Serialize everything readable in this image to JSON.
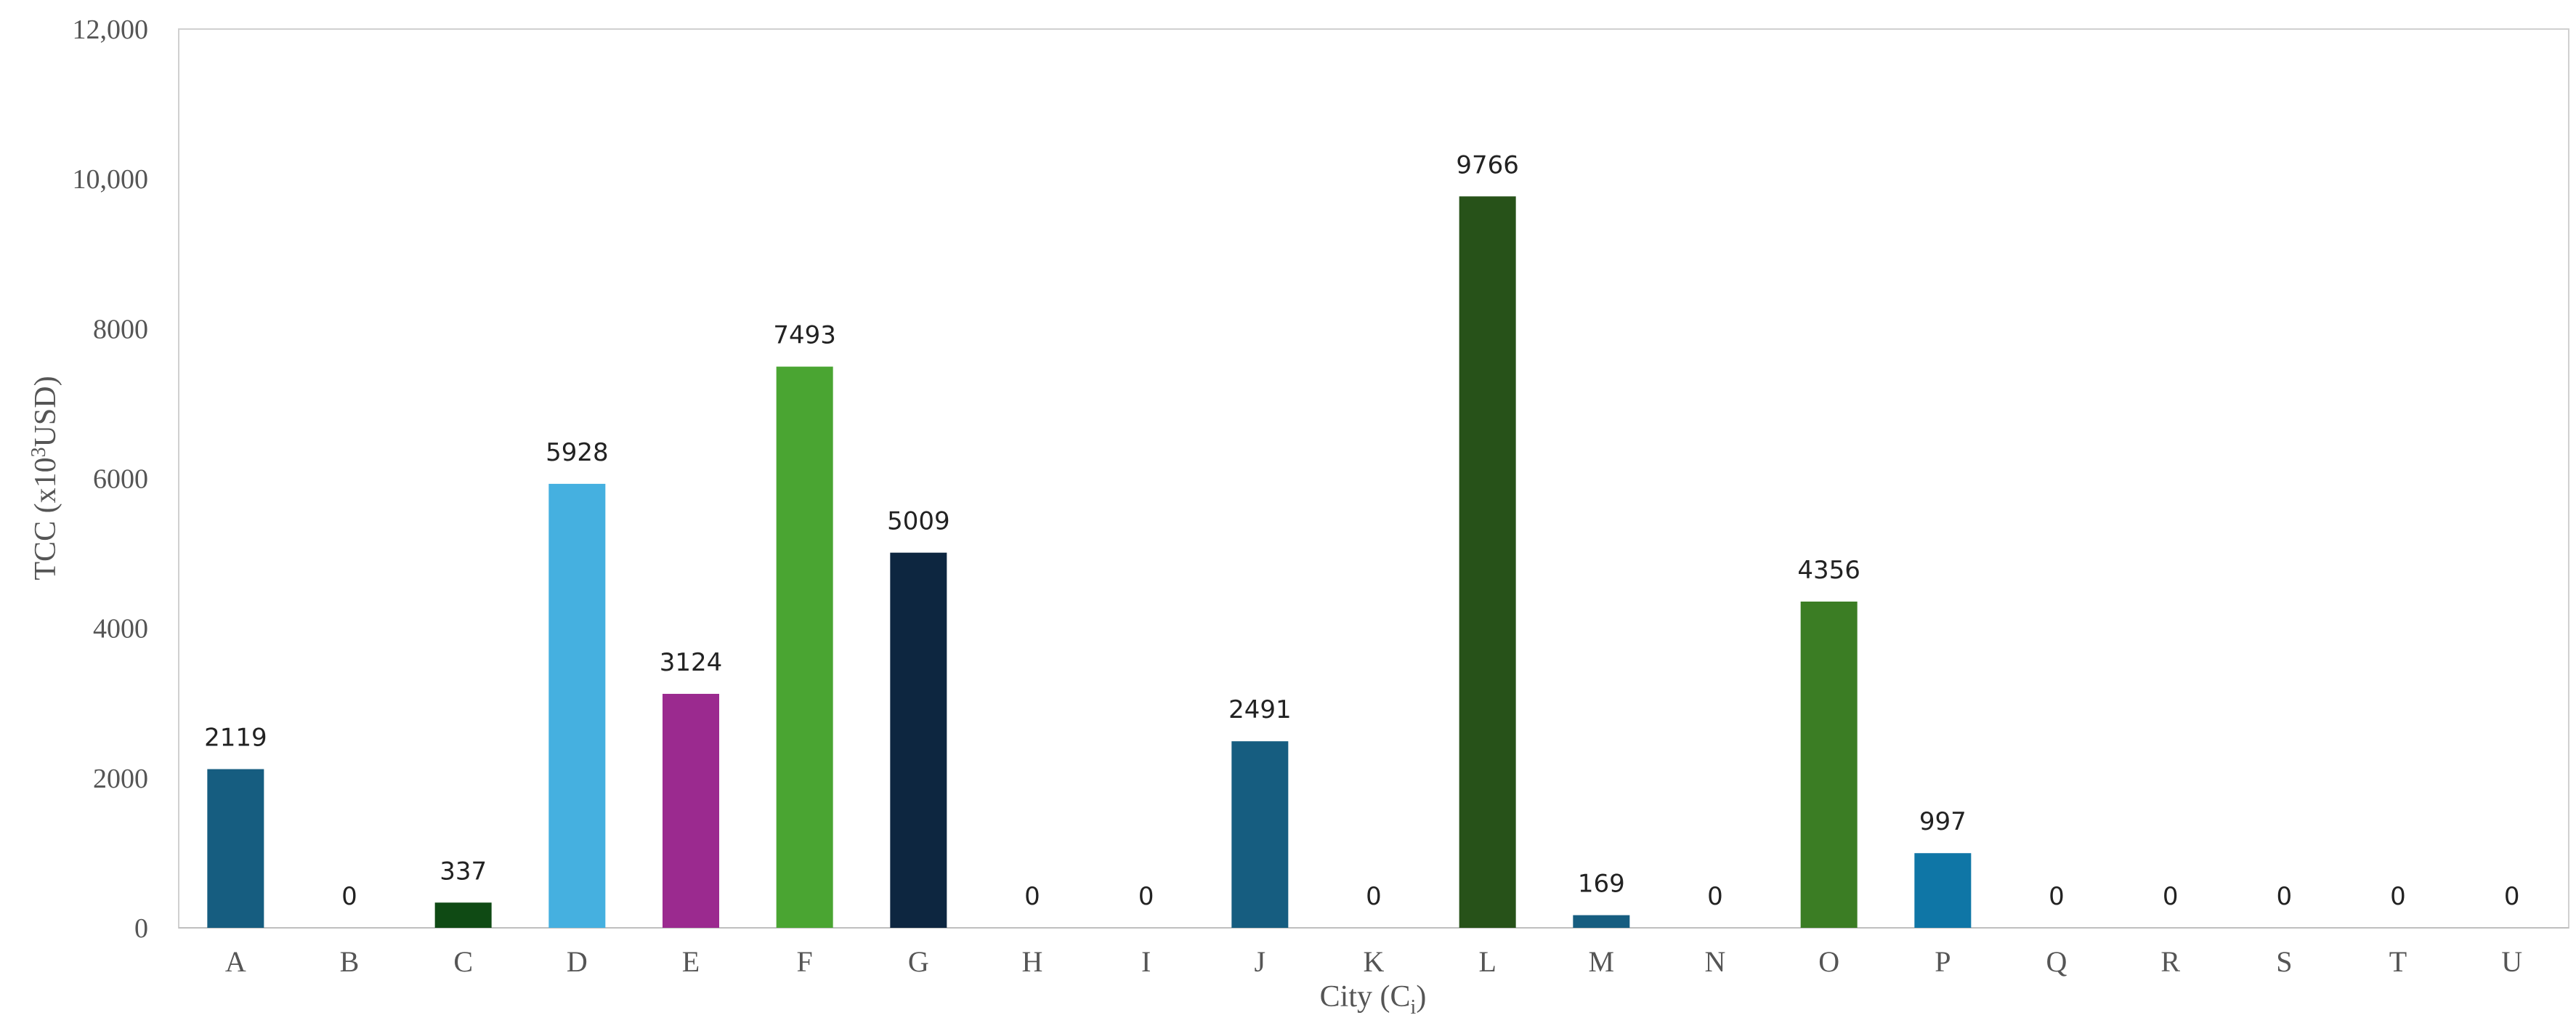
{
  "chart_data": {
    "type": "bar",
    "title": "",
    "xlabel_parts": {
      "main": "City (C",
      "sub": "i",
      "close": ")"
    },
    "ylabel_parts": {
      "before": "TCC (x10",
      "sup": "3",
      "after": "USD)"
    },
    "categories": [
      "A",
      "B",
      "C",
      "D",
      "E",
      "F",
      "G",
      "H",
      "I",
      "J",
      "K",
      "L",
      "M",
      "N",
      "O",
      "P",
      "Q",
      "R",
      "S",
      "T",
      "U"
    ],
    "values": [
      2119,
      0,
      337,
      5928,
      3124,
      7493,
      5009,
      0,
      0,
      2491,
      0,
      9766,
      169,
      0,
      4356,
      997,
      0,
      0,
      0,
      0,
      0
    ],
    "data_labels": [
      "2119",
      "0",
      "337",
      "5928",
      "3124",
      "7493",
      "5009",
      "0",
      "0",
      "2491",
      "0",
      "9766",
      "169",
      "0",
      "4356",
      "997",
      "0",
      "0",
      "0",
      "0",
      "0"
    ],
    "colors": [
      "#165d80",
      "#165d80",
      "#0f4a14",
      "#45b0e0",
      "#9b2a8f",
      "#4aa532",
      "#0d2640",
      "#165d80",
      "#165d80",
      "#165d80",
      "#165d80",
      "#275219",
      "#165d80",
      "#165d80",
      "#3b7d24",
      "#0f76a6",
      "#165d80",
      "#165d80",
      "#165d80",
      "#165d80",
      "#165d80"
    ],
    "ylim": [
      0,
      12000
    ],
    "yticks": [
      0,
      2000,
      4000,
      6000,
      8000,
      10000,
      12000
    ],
    "ytick_labels": [
      "0",
      "2000",
      "4000",
      "6000",
      "8000",
      "10,000",
      "12,000"
    ],
    "grid": false,
    "legend": "none"
  }
}
